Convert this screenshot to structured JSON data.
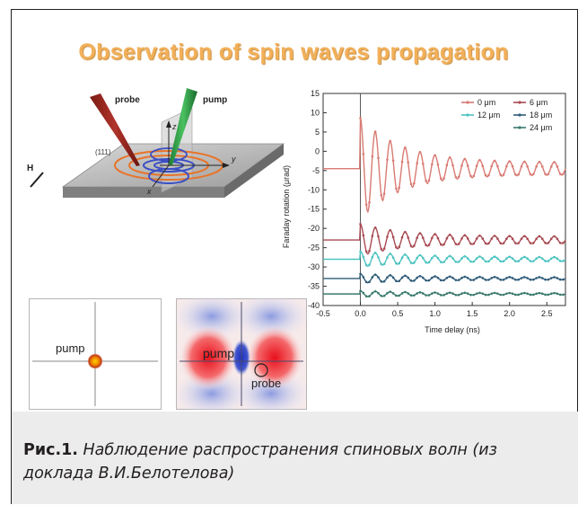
{
  "slide_title": "Observation of spin waves propagation",
  "schematic": {
    "probe_label": "probe",
    "pump_label": "pump",
    "field_label": "H",
    "axis_x": "x",
    "axis_y": "y",
    "axis_z": "z",
    "crystal_label": "(111)"
  },
  "maps": {
    "left_pump_label": "pump",
    "right_pump_label": "pump",
    "right_probe_label": "probe"
  },
  "chart_data": {
    "type": "line",
    "xlabel": "Time delay (ns)",
    "ylabel": "Faraday rotation (μrad)",
    "xlim": [
      -0.5,
      2.75
    ],
    "ylim": [
      -40,
      15
    ],
    "x_ticks": [
      "-0.5",
      "0.0",
      "0.5",
      "1.0",
      "1.5",
      "2.0",
      "2.5"
    ],
    "y_ticks": [
      "15",
      "10",
      "5",
      "0",
      "-5",
      "-10",
      "-15",
      "-20",
      "-25",
      "-30",
      "-35",
      "-40"
    ],
    "legend_placement": "top-right",
    "series": [
      {
        "name": "0 μm",
        "color": "#d97a73",
        "baseline": -4.5,
        "amplitude": 11.5,
        "period": 0.2,
        "decay": 0.55,
        "floor_amplitude": 1.6
      },
      {
        "name": "6 μm",
        "color": "#a84a52",
        "baseline": -23,
        "amplitude": 3.2,
        "period": 0.2,
        "decay": 0.6,
        "floor_amplitude": 0.9
      },
      {
        "name": "12 μm",
        "color": "#4cc3c0",
        "baseline": -28,
        "amplitude": 1.5,
        "period": 0.2,
        "decay": 0.8,
        "floor_amplitude": 0.5
      },
      {
        "name": "18 μm",
        "color": "#2f5b78",
        "baseline": -33,
        "amplitude": 0.9,
        "period": 0.2,
        "decay": 0.8,
        "floor_amplitude": 0.3
      },
      {
        "name": "24 μm",
        "color": "#3b7a6e",
        "baseline": -37,
        "amplitude": 0.6,
        "period": 0.2,
        "decay": 0.8,
        "floor_amplitude": 0.2
      }
    ]
  },
  "caption": {
    "label": "Рис.1.",
    "text": " Наблюдение распространения спиновых волн (из доклада В.И.Белотелова)"
  }
}
